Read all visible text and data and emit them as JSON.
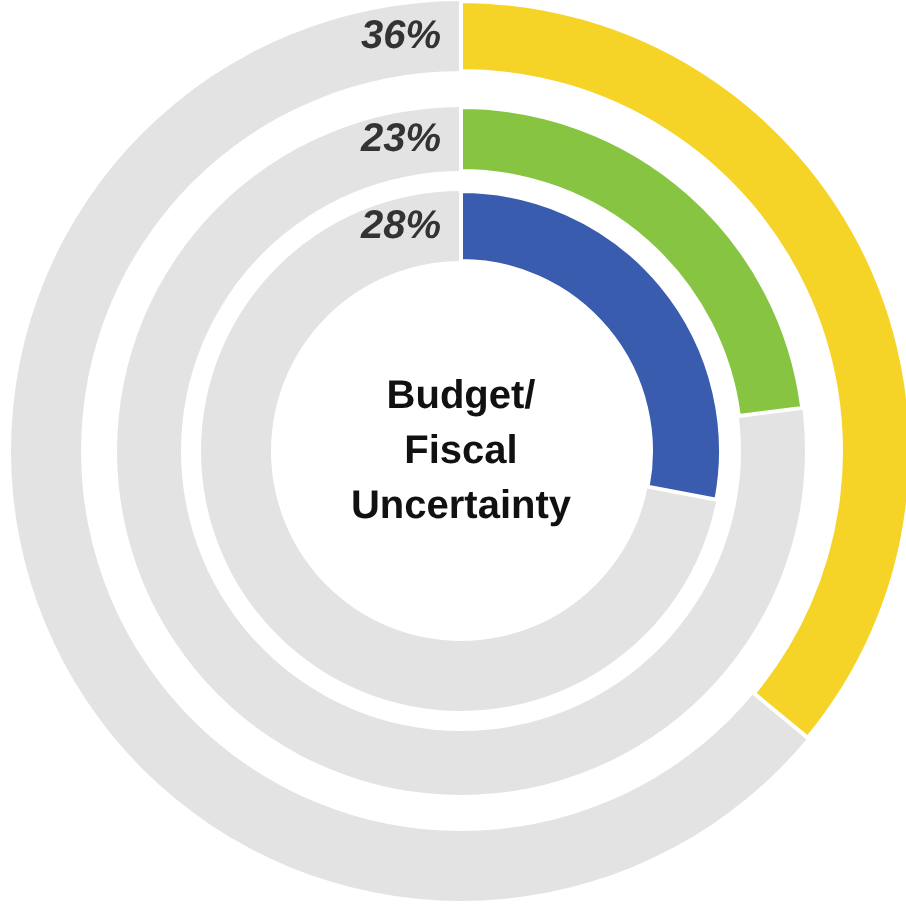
{
  "chart_data": {
    "type": "other",
    "title": "Budget/\nFiscal\nUncertainty",
    "categories": [
      null,
      null,
      null
    ],
    "values": [
      36,
      23,
      28
    ],
    "colors": [
      "#f5d327",
      "#86c441",
      "#3a5cae"
    ],
    "value_labels": [
      "36%",
      "23%",
      "28%"
    ]
  }
}
